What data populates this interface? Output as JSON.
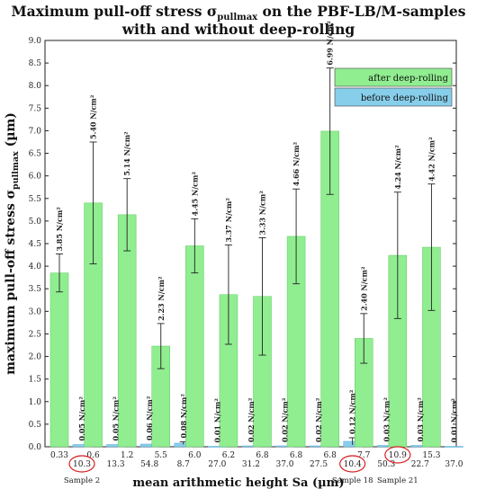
{
  "chart_data": {
    "type": "bar",
    "title_line1": "Maximum pull-off stress σ",
    "title_sub": "pullmax",
    "title_line1_rest": " on the PBF-LB/M-samples",
    "title_line2": "with and without deep-rolling",
    "ylabel_main": "maximum pull-off stress σ",
    "ylabel_sub": "pullmax",
    "ylabel_unit": " (µm)",
    "xlabel": "mean arithmetic height Sa (µm)",
    "ylim": [
      0,
      9
    ],
    "yticks": [
      "0.0",
      "0.5",
      "1.0",
      "1.5",
      "2.0",
      "2.5",
      "3.0",
      "3.5",
      "4.0",
      "4.5",
      "5.0",
      "5.5",
      "6.0",
      "6.5",
      "7.0",
      "7.5",
      "8.0",
      "8.5",
      "9.0"
    ],
    "legend_position": "top-right",
    "colors": {
      "after": "#90ee90",
      "after_edge": "#5fc85f",
      "before": "#87ceeb",
      "before_edge": "#5aaad8"
    },
    "series": [
      {
        "name": "after deep-rolling",
        "values": [
          3.85,
          5.4,
          5.14,
          2.23,
          4.45,
          3.37,
          3.33,
          4.66,
          6.99,
          2.4,
          4.24,
          4.42
        ],
        "errors": [
          0.42,
          1.35,
          0.8,
          0.5,
          0.6,
          1.1,
          1.3,
          1.05,
          1.4,
          0.55,
          1.4,
          1.4
        ],
        "labels": [
          "3.85 N/cm²",
          "5.40 N/cm²",
          "5.14 N/cm²",
          "2.23 N/cm²",
          "4.45 N/cm²",
          "3.37 N/cm²",
          "3.33 N/cm²",
          "4.66 N/cm²",
          "6.99 N/cm²",
          "2.40 N/cm²",
          "4.24 N/cm²",
          "4.42 N/cm²"
        ],
        "sa": [
          "0.33",
          "0.6",
          "1.2",
          "5.5",
          "6.0",
          "6.2",
          "6.8",
          "6.8",
          "6.8",
          "7.7",
          "10.9",
          "15.3"
        ]
      },
      {
        "name": "before deep-rolling",
        "values": [
          0.05,
          0.05,
          0.06,
          0.08,
          0.01,
          0.02,
          0.02,
          0.02,
          0.12,
          0.03,
          0.03,
          0.01
        ],
        "errors": [
          0,
          0,
          0,
          0.03,
          0,
          0,
          0,
          0,
          0.08,
          0,
          0,
          0
        ],
        "labels": [
          "0.05 N/cm²",
          "0.05 N/cm²",
          "0.06 N/cm²",
          "0.08 N/cm²",
          "0.01 N/cm²",
          "0.02 N/cm²",
          "0.02 N/cm²",
          "0.02 N/cm²",
          "0.12 N/cm²",
          "0.03 N/cm²",
          "0.03 N/cm²",
          "0.01 N/cm²"
        ],
        "sa": [
          "10.3",
          "13.3",
          "54.8",
          "8.7",
          "27.0",
          "31.2",
          "37.0",
          "27.5",
          "10.4",
          "50.3",
          "22.7",
          "37.0"
        ]
      }
    ],
    "annotations": [
      {
        "text": "Sample 2",
        "series": 1,
        "index": 0
      },
      {
        "text": "Sample 18",
        "series": 1,
        "index": 8
      },
      {
        "text": "Sample 21",
        "series": 0,
        "index": 10
      }
    ]
  }
}
